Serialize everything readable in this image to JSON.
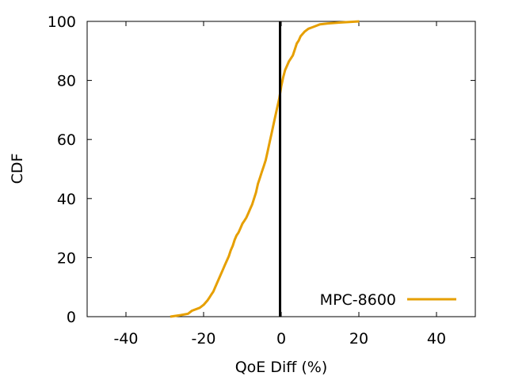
{
  "chart_data": {
    "type": "line",
    "title": "",
    "xlabel": "QoE Diff (%)",
    "ylabel": "CDF",
    "xlim": [
      -50,
      50
    ],
    "ylim": [
      0,
      100
    ],
    "xticks": [
      -40,
      -20,
      0,
      20,
      40
    ],
    "xtick_labels": [
      "-40",
      "-20",
      "0",
      "20",
      "40"
    ],
    "yticks": [
      0,
      20,
      40,
      60,
      80,
      100
    ],
    "ytick_labels": [
      "0",
      "20",
      "40",
      "60",
      "80",
      "100"
    ],
    "grid": false,
    "legend_position": "bottom-right",
    "reference_line": {
      "x": -0.3,
      "color": "#000000"
    },
    "series": [
      {
        "name": "MPC-8600",
        "color": "#e69f00",
        "x": [
          -28.6,
          -26,
          -24,
          -23.5,
          -23,
          -21,
          -20,
          -19,
          -18.5,
          -18,
          -17.5,
          -17,
          -16,
          -15,
          -14.5,
          -14,
          -13.5,
          -13,
          -12.5,
          -12,
          -11.5,
          -11,
          -10.5,
          -10,
          -9.5,
          -9,
          -8.5,
          -8,
          -7.5,
          -7,
          -6.5,
          -6,
          -5.5,
          -5,
          -4.5,
          -4,
          -3.5,
          -3,
          -2.5,
          -2,
          -1.5,
          -1,
          -0.5,
          0,
          0.5,
          1,
          1.5,
          2,
          3,
          3.5,
          4,
          4.5,
          5,
          6,
          7,
          8,
          9,
          10,
          12,
          15,
          20.1
        ],
        "values": [
          0,
          0.5,
          1,
          1.5,
          2,
          3,
          4,
          5.5,
          6.5,
          7.5,
          8.5,
          10,
          13,
          16,
          17.5,
          19,
          20.5,
          22.5,
          24,
          26,
          27.5,
          28.5,
          30,
          31.5,
          32.5,
          33.5,
          35,
          36.5,
          38,
          40,
          42,
          45,
          47,
          49,
          51,
          53,
          56,
          59,
          62,
          65,
          68,
          71,
          74,
          78,
          81,
          83.5,
          85,
          86.5,
          88.5,
          90.5,
          92.5,
          93.5,
          95,
          96.5,
          97.5,
          98,
          98.5,
          99,
          99.3,
          99.6,
          100
        ]
      }
    ]
  }
}
